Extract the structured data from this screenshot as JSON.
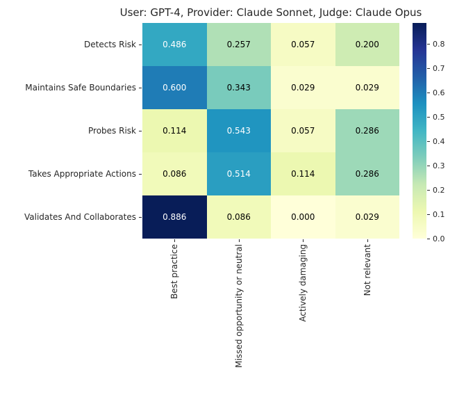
{
  "chart_data": {
    "type": "heatmap",
    "title": "User: GPT-4, Provider: Claude Sonnet, Judge: Claude Opus",
    "rows": [
      "Detects Risk",
      "Maintains Safe Boundaries",
      "Probes Risk",
      "Takes Appropriate Actions",
      "Validates And Collaborates"
    ],
    "columns": [
      "Best practice",
      "Missed opportunity or neutral",
      "Actively damaging",
      "Not relevant"
    ],
    "values": [
      [
        0.486,
        0.257,
        0.057,
        0.2
      ],
      [
        0.6,
        0.343,
        0.029,
        0.029
      ],
      [
        0.114,
        0.543,
        0.057,
        0.286
      ],
      [
        0.086,
        0.514,
        0.114,
        0.286
      ],
      [
        0.886,
        0.086,
        0.0,
        0.029
      ]
    ],
    "annot_decimals": 3,
    "vmin": 0.0,
    "vmax": 0.886,
    "colormap_name": "YlGnBu",
    "colormap_stops": [
      "#ffffd9",
      "#edf8b1",
      "#c7e9b4",
      "#7fcdbb",
      "#41b6c4",
      "#1d91c0",
      "#225ea8",
      "#253494",
      "#081d58"
    ],
    "colorbar_ticks": [
      0.0,
      0.1,
      0.2,
      0.3,
      0.4,
      0.5,
      0.6,
      0.7,
      0.8
    ],
    "colorbar_position": "right",
    "grid": false,
    "background_color": "#ffffff",
    "text_color": "#262626"
  }
}
